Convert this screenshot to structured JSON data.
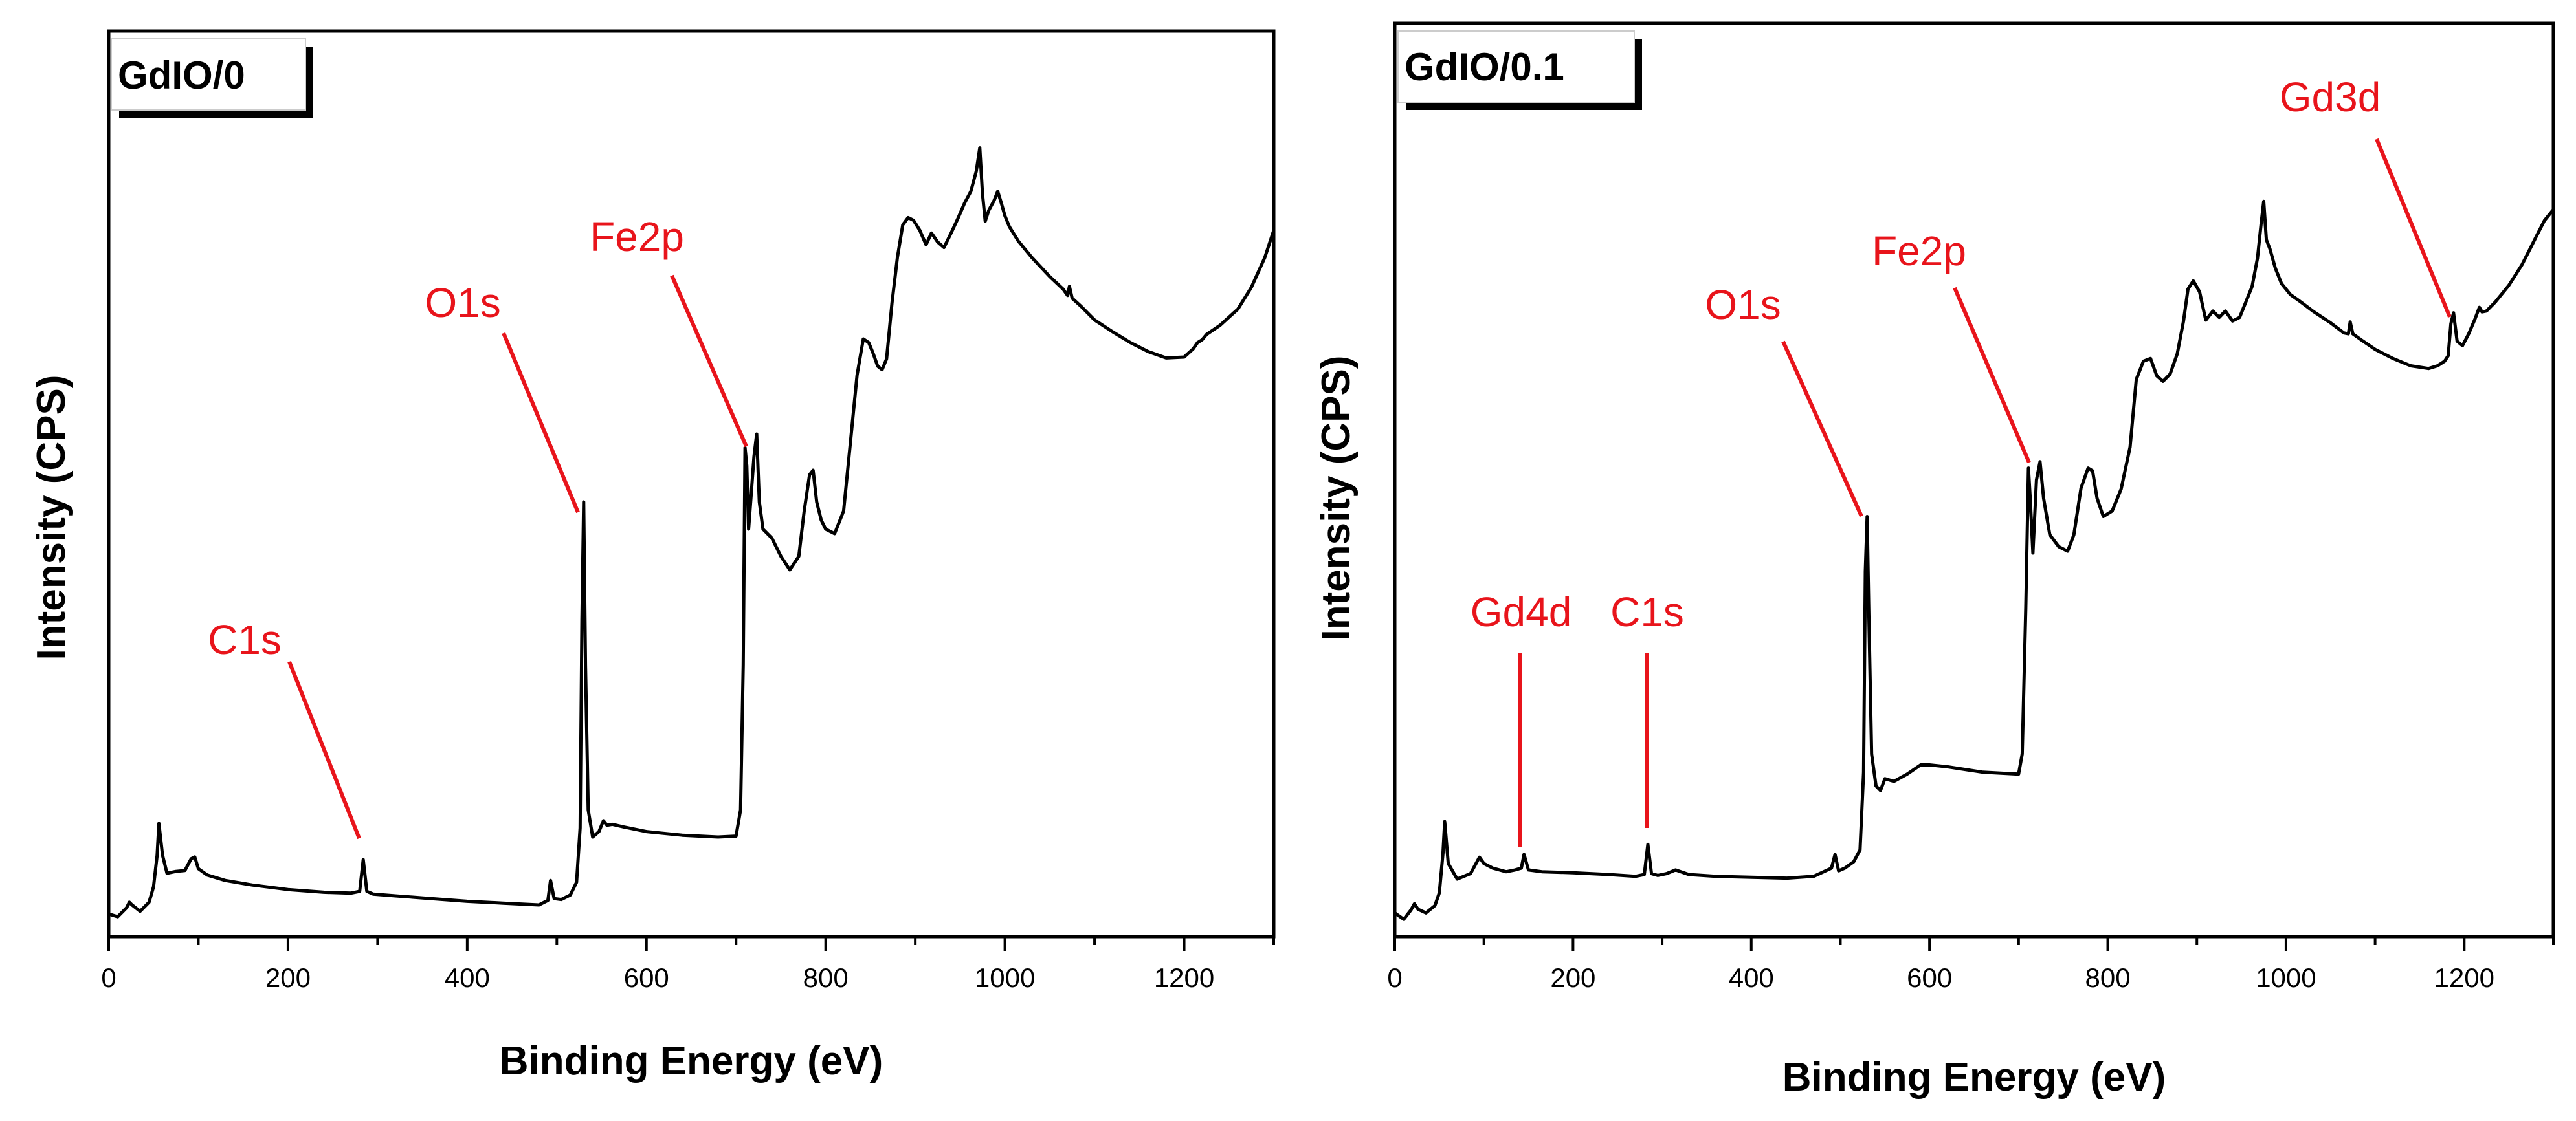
{
  "chart_data": [
    {
      "type": "line",
      "panel": "left",
      "sample_label": "GdIO/0",
      "xlabel": "Binding Energy (eV)",
      "ylabel": "Intensity (CPS)",
      "xlim": [
        0,
        1300
      ],
      "ylim": [
        0,
        100
      ],
      "y_ticks_labeled": false,
      "x_ticks": [
        0,
        200,
        400,
        600,
        800,
        1000,
        1200
      ],
      "x_tick_labels": [
        "0",
        "200",
        "400",
        "600",
        "800",
        "1000",
        "1200"
      ],
      "grid": false,
      "line_color": "#000000",
      "annotation_color": "#e8141b",
      "series": [
        {
          "name": "GdIO/0",
          "x": [
            0,
            10,
            20,
            23,
            26,
            35,
            45,
            50,
            54,
            56,
            60,
            65,
            75,
            85,
            92,
            96,
            100,
            110,
            130,
            160,
            200,
            240,
            270,
            280,
            284,
            288,
            295,
            320,
            360,
            400,
            440,
            480,
            490,
            493,
            497,
            505,
            515,
            522,
            526,
            528,
            530,
            532,
            535,
            540,
            547,
            552,
            556,
            562,
            575,
            600,
            640,
            680,
            700,
            705,
            708,
            710,
            712,
            714,
            717,
            720,
            723,
            726,
            730,
            740,
            750,
            760,
            770,
            776,
            782,
            786,
            790,
            795,
            800,
            810,
            820,
            828,
            835,
            842,
            848,
            853,
            858,
            863,
            868,
            874,
            880,
            886,
            892,
            898,
            905,
            912,
            918,
            925,
            932,
            940,
            948,
            955,
            962,
            968,
            972,
            975,
            978,
            982,
            988,
            992,
            996,
            1000,
            1005,
            1015,
            1030,
            1050,
            1065,
            1070,
            1072,
            1075,
            1085,
            1100,
            1120,
            1140,
            1160,
            1180,
            1200,
            1210,
            1215,
            1220,
            1225,
            1240,
            1260,
            1275,
            1290,
            1300
          ],
          "y": [
            2.5,
            2.2,
            3.2,
            3.8,
            3.5,
            2.8,
            3.8,
            5.5,
            9,
            12.5,
            9,
            7,
            7.2,
            7.3,
            8.6,
            8.8,
            7.5,
            6.8,
            6.2,
            5.7,
            5.2,
            4.9,
            4.8,
            5,
            8.5,
            5,
            4.7,
            4.5,
            4.2,
            3.9,
            3.7,
            3.5,
            4,
            6.2,
            4.2,
            4.1,
            4.6,
            6,
            12,
            35,
            48,
            30,
            14,
            11,
            11.6,
            12.8,
            12.3,
            12.4,
            12.1,
            11.6,
            11.2,
            11,
            11.1,
            14,
            30,
            54,
            52,
            45,
            49,
            53,
            55.5,
            48,
            45,
            44,
            42,
            40.5,
            42,
            47,
            51,
            51.5,
            48,
            46,
            45,
            44.5,
            47,
            55,
            62,
            66,
            65.6,
            64.4,
            63,
            62.6,
            63.8,
            70,
            75,
            78.6,
            79.4,
            79.1,
            78,
            76.4,
            77.7,
            76.7,
            76.1,
            77.7,
            79.4,
            81,
            82.3,
            84.5,
            87.1,
            82,
            79,
            80.2,
            81.3,
            82.3,
            81,
            79.6,
            78.4,
            76.8,
            75,
            72.9,
            71.5,
            70.8,
            71.8,
            70.5,
            69.6,
            68.1,
            66.8,
            65.6,
            64.6,
            63.9,
            64,
            64.9,
            65.6,
            65.9,
            66.5,
            67.5,
            69.3,
            71.7,
            75,
            78
          ]
        }
      ],
      "annotations": [
        {
          "text": "C1s",
          "x": 284
        },
        {
          "text": "O1s",
          "x": 530
        },
        {
          "text": "Fe2p",
          "x": 711
        }
      ]
    },
    {
      "type": "line",
      "panel": "right",
      "sample_label": "GdIO/0.1",
      "xlabel": "Binding Energy (eV)",
      "ylabel": "Intensity (CPS)",
      "xlim": [
        0,
        1300
      ],
      "ylim": [
        0,
        100
      ],
      "y_ticks_labeled": false,
      "x_ticks": [
        0,
        200,
        400,
        600,
        800,
        1000,
        1200
      ],
      "x_tick_labels": [
        "0",
        "200",
        "400",
        "600",
        "800",
        "1000",
        "1200"
      ],
      "grid": false,
      "line_color": "#000000",
      "annotation_color": "#e8141b",
      "series": [
        {
          "name": "GdIO/0.1",
          "x": [
            0,
            10,
            18,
            22,
            26,
            35,
            45,
            50,
            54,
            56,
            60,
            70,
            85,
            95,
            100,
            110,
            125,
            135,
            142,
            145,
            150,
            165,
            200,
            240,
            270,
            280,
            284,
            288,
            295,
            305,
            315,
            330,
            360,
            400,
            440,
            470,
            490,
            494,
            498,
            505,
            515,
            522,
            526,
            528,
            530,
            532,
            535,
            540,
            545,
            550,
            560,
            575,
            590,
            600,
            620,
            660,
            700,
            704,
            708,
            711,
            713,
            716,
            720,
            724,
            728,
            735,
            745,
            755,
            762,
            770,
            778,
            783,
            788,
            795,
            805,
            815,
            825,
            832,
            840,
            848,
            855,
            862,
            870,
            878,
            885,
            890,
            896,
            903,
            910,
            918,
            925,
            932,
            940,
            948,
            955,
            962,
            968,
            972,
            975,
            978,
            982,
            988,
            995,
            1005,
            1015,
            1030,
            1050,
            1065,
            1070,
            1072,
            1075,
            1085,
            1100,
            1120,
            1140,
            1160,
            1170,
            1178,
            1182,
            1185,
            1188,
            1192,
            1198,
            1205,
            1212,
            1217,
            1220,
            1225,
            1235,
            1250,
            1265,
            1280,
            1290,
            1300
          ],
          "y": [
            2.6,
            1.9,
            2.9,
            3.6,
            3.0,
            2.6,
            3.4,
            4.8,
            9.1,
            12.6,
            8.0,
            6.3,
            6.9,
            8.7,
            8.0,
            7.5,
            7.1,
            7.3,
            7.5,
            9.0,
            7.3,
            7.1,
            7.0,
            6.8,
            6.6,
            6.8,
            10.1,
            6.9,
            6.7,
            6.9,
            7.3,
            6.8,
            6.6,
            6.5,
            6.4,
            6.6,
            7.5,
            9.0,
            7.2,
            7.5,
            8.2,
            9.5,
            18,
            40,
            46,
            35,
            20,
            16.5,
            16.0,
            17.3,
            17.0,
            17.8,
            18.8,
            18.8,
            18.6,
            18.0,
            17.8,
            20,
            36,
            51.3,
            48,
            42,
            50,
            52,
            48,
            44,
            42.7,
            42.2,
            44,
            49.1,
            51.3,
            51.0,
            48,
            46,
            46.6,
            49,
            53.6,
            61,
            63,
            63.3,
            61.4,
            60.8,
            61.6,
            63.8,
            67.4,
            70.9,
            71.8,
            70.6,
            67.5,
            68.5,
            67.8,
            68.5,
            67.4,
            67.8,
            69.5,
            71.2,
            74.3,
            78.0,
            80.5,
            76.3,
            75.3,
            73.2,
            71.5,
            70.3,
            69.6,
            68.5,
            67.2,
            66.1,
            66.0,
            67.3,
            66.0,
            65.3,
            64.3,
            63.3,
            62.5,
            62.2,
            62.5,
            63.0,
            63.6,
            67.1,
            68.3,
            65.2,
            64.7,
            66.0,
            67.6,
            68.9,
            68.4,
            68.5,
            69.5,
            71.3,
            73.6,
            76.5,
            78.4,
            79.6
          ]
        }
      ],
      "annotations": [
        {
          "text": "Gd4d",
          "x": 142
        },
        {
          "text": "C1s",
          "x": 284
        },
        {
          "text": "O1s",
          "x": 530
        },
        {
          "text": "Fe2p",
          "x": 711
        },
        {
          "text": "Gd3d",
          "x": 1187
        }
      ]
    }
  ]
}
